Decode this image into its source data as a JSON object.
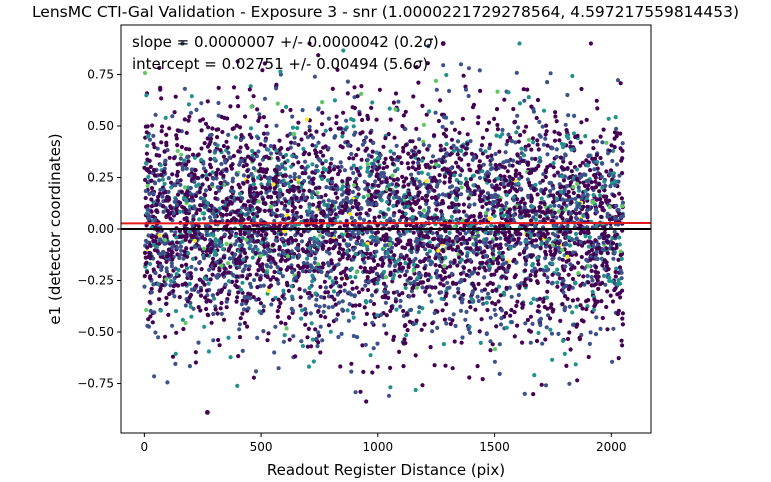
{
  "chart_data": {
    "type": "scatter",
    "title": "LensMC CTI-Gal Validation - Exposure 3 - snr (1.0000221729278564, 4.597217559814453)",
    "xlabel": "Readout Register Distance (pix)",
    "ylabel": "e1 (detector coordinates)",
    "xlim": [
      -100,
      2170
    ],
    "ylim": [
      -0.99,
      0.99
    ],
    "xticks": [
      0,
      500,
      1000,
      1500,
      2000
    ],
    "xtick_labels": [
      "0",
      "500",
      "1000",
      "1500",
      "2000"
    ],
    "yticks": [
      -0.75,
      -0.5,
      -0.25,
      0.0,
      0.25,
      0.5,
      0.75
    ],
    "ytick_labels": [
      "−0.75",
      "−0.50",
      "−0.25",
      "0.00",
      "0.25",
      "0.50",
      "0.75"
    ],
    "grid": false,
    "annotations": [
      {
        "prefix": "slope = 0.0000007 +/- 0.0000042 (0.2",
        "sigma": "σ",
        "suffix": ")"
      },
      {
        "prefix": "intercept = 0.02751 +/- 0.00494 (5.6",
        "sigma": "σ",
        "suffix": ")"
      }
    ],
    "fit_line": {
      "slope": 7e-07,
      "intercept": 0.02751,
      "color": "#e31a1c"
    },
    "zero_line": {
      "y": 0.0,
      "color": "#000000"
    },
    "colormap": [
      "#440154",
      "#3b528b",
      "#21918c",
      "#5ec962",
      "#fde725"
    ],
    "point_color_weights": [
      0.55,
      0.3,
      0.12,
      0.025,
      0.005
    ],
    "points": {
      "n": 5200,
      "x_range": [
        0,
        2050
      ],
      "y_mean": 0.03,
      "y_sd": 0.27,
      "y_clip": [
        -0.9,
        0.9
      ],
      "highlight": [
        {
          "x": 600,
          "y": -0.01,
          "color": "#fde725"
        },
        {
          "x": 1480,
          "y": 0.05,
          "color": "#fde725"
        },
        {
          "x": 640,
          "y": 0.46,
          "color": "#5ec962"
        },
        {
          "x": 1920,
          "y": 0.13,
          "color": "#5ec962"
        },
        {
          "x": 1280,
          "y": 0.9,
          "color": "#440154"
        },
        {
          "x": 270,
          "y": -0.89,
          "color": "#440154"
        }
      ]
    }
  }
}
